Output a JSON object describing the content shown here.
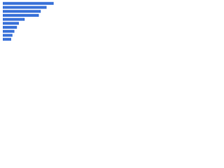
{
  "chart_data": {
    "type": "bar",
    "orientation": "horizontal",
    "categories": [
      null,
      null,
      null,
      null,
      null,
      null,
      null,
      null,
      null,
      null
    ],
    "values": [
      79,
      68,
      59,
      56,
      34,
      25,
      22,
      18,
      15,
      13
    ],
    "color": "#3b73d9",
    "xlim": [
      0,
      100
    ]
  }
}
